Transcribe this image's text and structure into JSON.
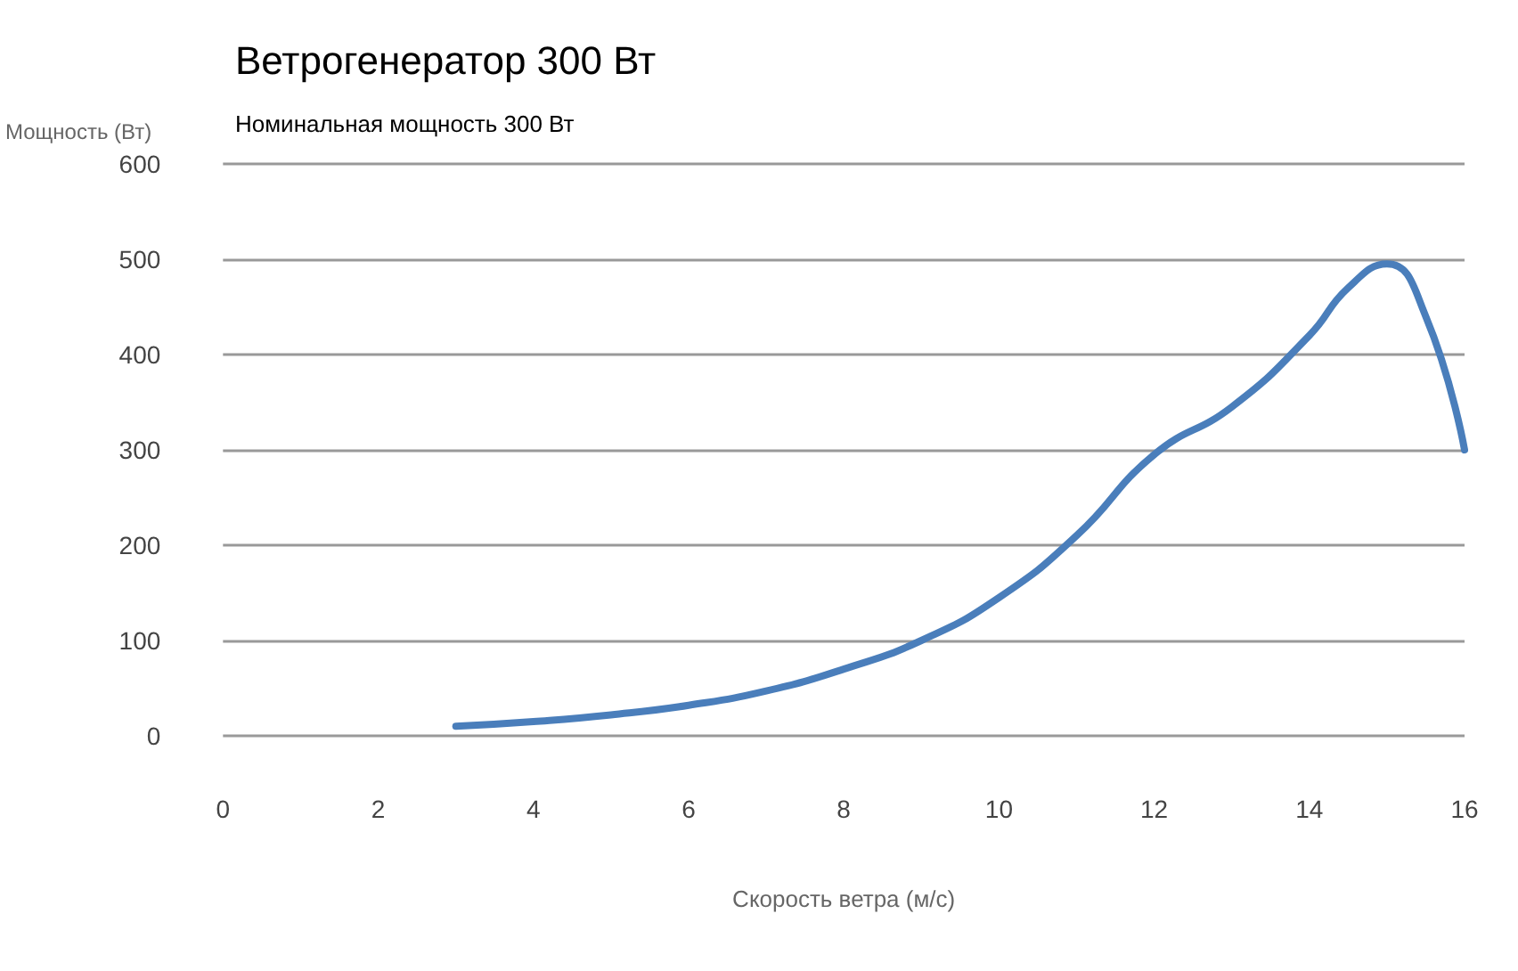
{
  "chart_data": {
    "type": "line",
    "title": "Ветрогенератор 300 Вт",
    "subtitle": "Номинальная мощность 300 Вт",
    "xlabel": "Скорость ветра (м/с)",
    "ylabel": "Мощность (Вт)",
    "x": [
      3,
      4,
      5,
      6,
      7,
      8,
      9,
      10,
      11,
      12,
      13,
      14,
      14.5,
      15,
      15.5,
      16
    ],
    "series": [
      {
        "color": "#4a7ebb",
        "values": [
          10,
          15,
          22,
          32,
          47,
          70,
          100,
          145,
          210,
          295,
          345,
          420,
          470,
          495,
          440,
          300
        ]
      }
    ],
    "xlim": [
      0,
      16
    ],
    "xticks": [
      0,
      2,
      4,
      6,
      8,
      10,
      12,
      14,
      16
    ],
    "ylim": [
      0,
      600
    ],
    "yticks": [
      0,
      100,
      200,
      300,
      400,
      500,
      600
    ],
    "grid": "y",
    "marker": "none",
    "line_style": "solid"
  }
}
